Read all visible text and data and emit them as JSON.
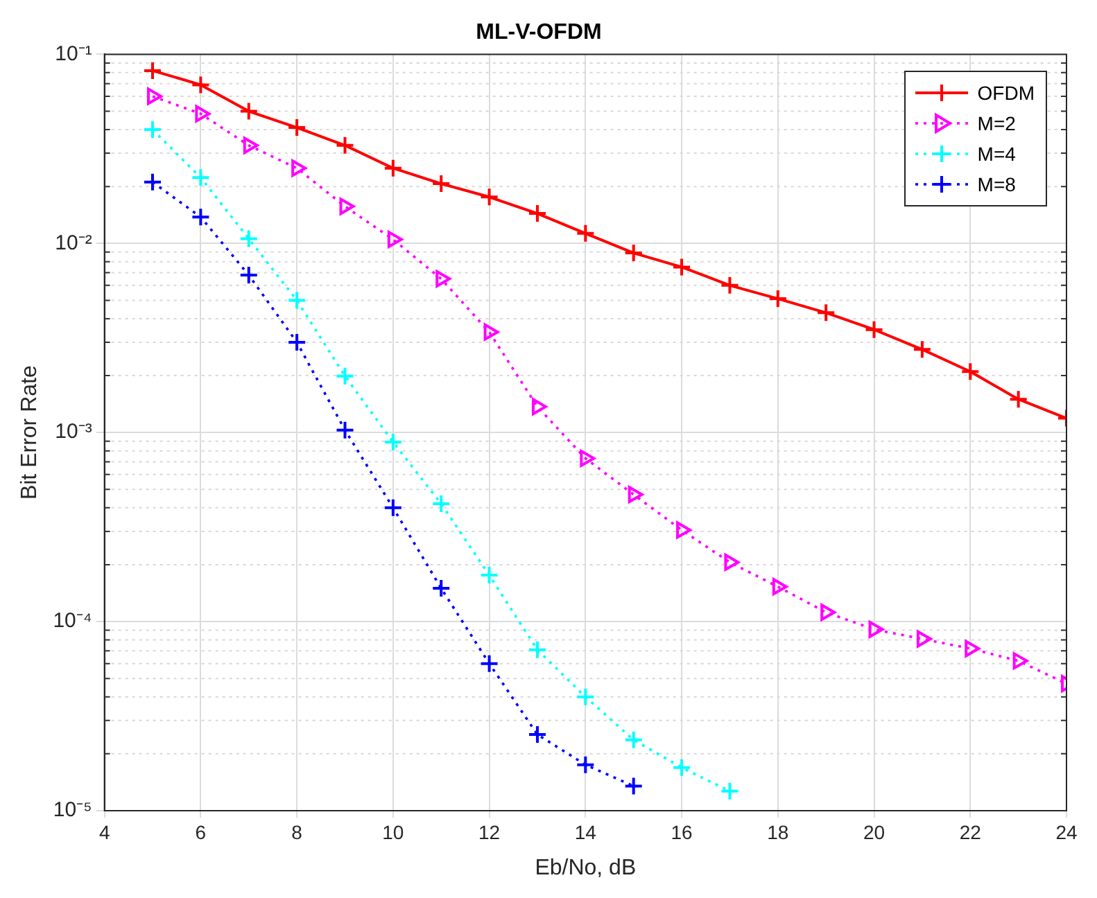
{
  "chart_data": {
    "type": "line",
    "title": "ML-V-OFDM",
    "xlabel": "Eb/No, dB",
    "ylabel": "Bit Error Rate",
    "log": "y",
    "grid": true,
    "legend": "top right",
    "x": [
      5,
      6,
      7,
      8,
      9,
      10,
      11,
      12,
      13,
      14,
      15,
      16,
      17,
      18,
      19,
      20,
      21,
      22,
      23,
      24
    ],
    "xlim": [
      4,
      24
    ],
    "xticks": [
      4,
      6,
      8,
      10,
      12,
      14,
      16,
      18,
      20,
      22,
      24
    ],
    "ylim": [
      1e-05,
      0.1
    ],
    "yticks": [
      {
        "value": 1e-05,
        "label": "10⁻⁵"
      },
      {
        "value": 0.0001,
        "label": "10⁻⁴"
      },
      {
        "value": 0.001,
        "label": "10⁻³"
      },
      {
        "value": 0.01,
        "label": "10⁻²"
      },
      {
        "value": 0.1,
        "label": "10⁻¹"
      }
    ],
    "series": [
      {
        "name": "OFDM",
        "color": "#ff0000",
        "marker": "cross",
        "line_style": "solid",
        "values": [
          0.082,
          0.069,
          0.05,
          0.041,
          0.033,
          0.025,
          0.0207,
          0.0176,
          0.0144,
          0.0113,
          0.0089,
          0.0075,
          0.006,
          0.0051,
          0.0043,
          0.0035,
          0.00275,
          0.0021,
          0.0015,
          0.00119
        ]
      },
      {
        "name": "M=2",
        "color": "#ff00ff",
        "marker": "triangle",
        "line_style": "dotted",
        "values": [
          0.06,
          0.0485,
          0.033,
          0.025,
          0.0157,
          0.0105,
          0.0065,
          0.0034,
          0.00137,
          0.00073,
          0.00047,
          0.000305,
          0.000206,
          0.000153,
          0.000112,
          9.1e-05,
          8.1e-05,
          7.2e-05,
          6.2e-05,
          4.7e-05
        ]
      },
      {
        "name": "M=4",
        "color": "#00ffff",
        "marker": "cross",
        "line_style": "dotted",
        "values": [
          0.04,
          0.0223,
          0.0106,
          0.005,
          0.00199,
          0.00089,
          0.00042,
          0.000176,
          7.1e-05,
          4e-05,
          2.37e-05,
          1.69e-05,
          1.27e-05,
          null,
          null,
          null,
          null,
          null,
          null,
          null
        ]
      },
      {
        "name": "M=8",
        "color": "#0000ff",
        "marker": "cross",
        "line_style": "dotted",
        "values": [
          0.0211,
          0.0138,
          0.0068,
          0.003,
          0.00103,
          0.0004,
          0.00015,
          6e-05,
          2.53e-05,
          1.75e-05,
          1.35e-05,
          null,
          null,
          null,
          null,
          null,
          null,
          null,
          null,
          null
        ]
      }
    ]
  }
}
